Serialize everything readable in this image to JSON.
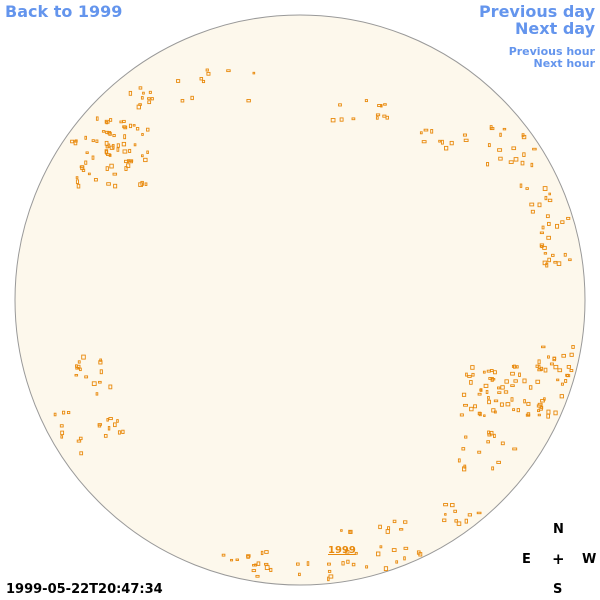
{
  "nav": {
    "back_label": "Back to 1999",
    "prev_day_label": "Previous day",
    "next_day_label": "Next day",
    "prev_hour_label": "Previous hour",
    "next_hour_label": "Next hour"
  },
  "disk": {
    "fill_color": "#fdf8ec",
    "outline_color": "#999999",
    "marker_color": "#e8890c"
  },
  "year_marker": "1999",
  "timestamp": "1999-05-22T20:47:34",
  "compass": {
    "north": "N",
    "east": "E",
    "center": "+",
    "west": "W",
    "south": "S"
  }
}
